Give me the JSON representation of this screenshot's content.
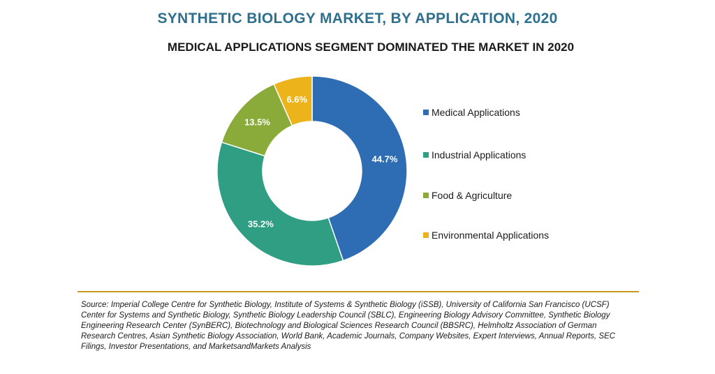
{
  "title": "SYNTHETIC BIOLOGY MARKET, BY APPLICATION, 2020",
  "subtitle": "MEDICAL APPLICATIONS SEGMENT DOMINATED THE MARKET IN 2020",
  "chart_data": {
    "type": "pie",
    "style": "donut",
    "categories": [
      "Medical Applications",
      "Industrial Applications",
      "Food & Agriculture",
      "Environmental Applications"
    ],
    "values": [
      44.7,
      35.2,
      13.5,
      6.6
    ],
    "data_labels": [
      "44.7%",
      "35.2%",
      "13.5%",
      "6.6%"
    ],
    "colors": [
      "#2e6db4",
      "#2f9e82",
      "#8aab3a",
      "#ecb41a"
    ],
    "legend_position": "right",
    "start_angle": "top, clockwise"
  },
  "legend": [
    {
      "label": "Medical Applications",
      "color": "#2e6db4"
    },
    {
      "label": "Industrial Applications",
      "color": "#2f9e82"
    },
    {
      "label": "Food & Agriculture",
      "color": "#8aab3a"
    },
    {
      "label": "Environmental Applications",
      "color": "#ecb41a"
    }
  ],
  "source": "Source: Imperial College Centre for Synthetic Biology, Institute of Systems & Synthetic Biology (iSSB), University of California San Francisco (UCSF) Center for Systems and Synthetic Biology, Synthetic Biology Leadership Council (SBLC), Engineering Biology Advisory Committee, Synthetic Biology Engineering Research Center (SynBERC), Biotechnology and Biological Sciences Research Council (BBSRC), Helmholtz Association of German Research Centres, Asian Synthetic Biology Association, World Bank, Academic Journals, Company Websites, Expert Interviews, Annual Reports, SEC Filings, Investor Presentations, and MarketsandMarkets Analysis"
}
